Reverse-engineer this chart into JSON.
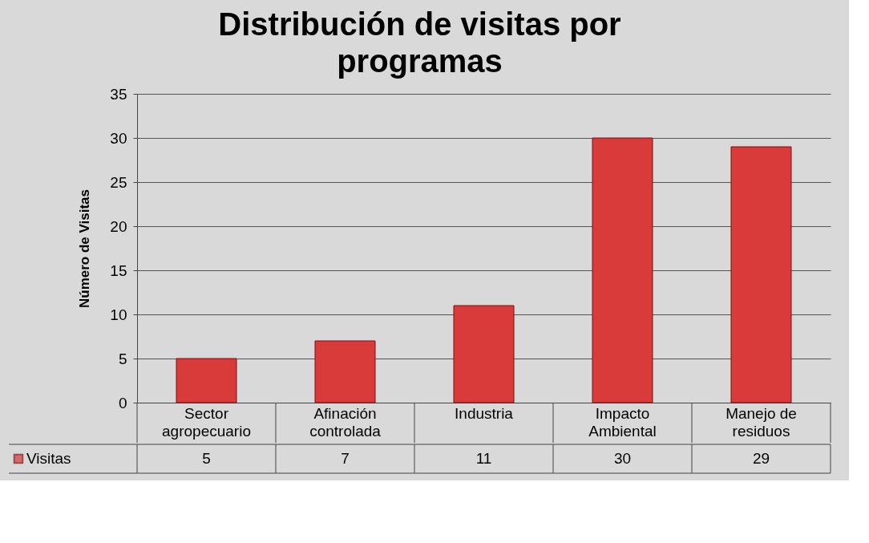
{
  "chart_data": {
    "type": "bar",
    "title": "Distribución de visitas por programas",
    "ylabel": "Número de Visitas",
    "categories": [
      "Sector agropecuario",
      "Afinación controlada",
      "Industria",
      "Impacto Ambiental",
      "Manejo de residuos"
    ],
    "series": [
      {
        "name": "Visitas",
        "color": "#d93a3a",
        "values": [
          5,
          7,
          11,
          30,
          29
        ]
      }
    ],
    "ylim": [
      0,
      35
    ],
    "yticks": [
      0,
      5,
      10,
      15,
      20,
      25,
      30,
      35
    ],
    "grid": "y",
    "data_labels": true,
    "legend": "bottom left"
  }
}
